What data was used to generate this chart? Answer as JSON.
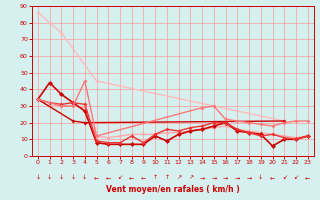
{
  "title": "",
  "xlabel": "Vent moyen/en rafales ( km/h )",
  "ylabel": "",
  "background_color": "#d6f0f0",
  "grid_color": "#ff9999",
  "xlim": [
    -0.5,
    23.5
  ],
  "ylim": [
    0,
    90
  ],
  "yticks": [
    0,
    10,
    20,
    30,
    40,
    50,
    60,
    70,
    80,
    90
  ],
  "xticks": [
    0,
    1,
    2,
    3,
    4,
    5,
    6,
    7,
    8,
    9,
    10,
    11,
    12,
    13,
    14,
    15,
    16,
    17,
    18,
    19,
    20,
    21,
    22,
    23
  ],
  "lines": [
    {
      "x": [
        0,
        1,
        2,
        5,
        21
      ],
      "y": [
        86,
        80,
        74,
        45,
        21
      ],
      "color": "#ffbbbb",
      "lw": 1.0,
      "marker": "D",
      "ms": 2.0
    },
    {
      "x": [
        0,
        1,
        2,
        3,
        4,
        5,
        6,
        7,
        8,
        9,
        10,
        11,
        12,
        13,
        14,
        15,
        16,
        17,
        18,
        19,
        20,
        21,
        22,
        23
      ],
      "y": [
        34,
        30,
        30,
        30,
        29,
        12,
        11,
        12,
        13,
        13,
        13,
        14,
        14,
        15,
        16,
        17,
        18,
        16,
        15,
        14,
        13,
        12,
        11,
        12
      ],
      "color": "#ffaaaa",
      "lw": 1.0,
      "marker": "D",
      "ms": 2.0
    },
    {
      "x": [
        0,
        1,
        2,
        3,
        4,
        5,
        6,
        7,
        8,
        9,
        10,
        11,
        12,
        13,
        14,
        15,
        16,
        17,
        18,
        19,
        20,
        21,
        22,
        23
      ],
      "y": [
        34,
        44,
        37,
        32,
        27,
        8,
        7,
        7,
        7,
        7,
        12,
        9,
        13,
        15,
        16,
        18,
        20,
        15,
        14,
        13,
        6,
        10,
        10,
        12
      ],
      "color": "#cc0000",
      "lw": 1.2,
      "marker": "D",
      "ms": 2.5
    },
    {
      "x": [
        0,
        3,
        4,
        21
      ],
      "y": [
        34,
        21,
        20,
        21
      ],
      "color": "#cc0000",
      "lw": 1.0,
      "marker": "D",
      "ms": 2.0
    },
    {
      "x": [
        0,
        1,
        2,
        3,
        4,
        5,
        6,
        7,
        8,
        9,
        10,
        11,
        12,
        13,
        14,
        15,
        16,
        17,
        18,
        19,
        20,
        21,
        22,
        23
      ],
      "y": [
        34,
        32,
        31,
        32,
        31,
        9,
        8,
        8,
        12,
        8,
        13,
        16,
        15,
        17,
        18,
        20,
        20,
        16,
        14,
        12,
        13,
        11,
        10,
        12
      ],
      "color": "#ee3333",
      "lw": 1.0,
      "marker": "D",
      "ms": 2.0
    },
    {
      "x": [
        0,
        2,
        3,
        4,
        5,
        14,
        15,
        16,
        17,
        18,
        19,
        20,
        21,
        22,
        23
      ],
      "y": [
        34,
        30,
        30,
        45,
        12,
        29,
        30,
        22,
        21,
        20,
        19,
        18,
        20,
        21,
        21
      ],
      "color": "#ff7777",
      "lw": 1.0,
      "marker": "D",
      "ms": 2.0
    }
  ],
  "wind_chars": [
    "↓",
    "↓",
    "↓",
    "↓",
    "↓",
    "←",
    "←",
    "↙",
    "←",
    "←",
    "↑",
    "↑",
    "↗",
    "↗",
    "→",
    "→",
    "→",
    "→",
    "→",
    "↓",
    "←",
    "↙",
    "↙",
    "←"
  ]
}
